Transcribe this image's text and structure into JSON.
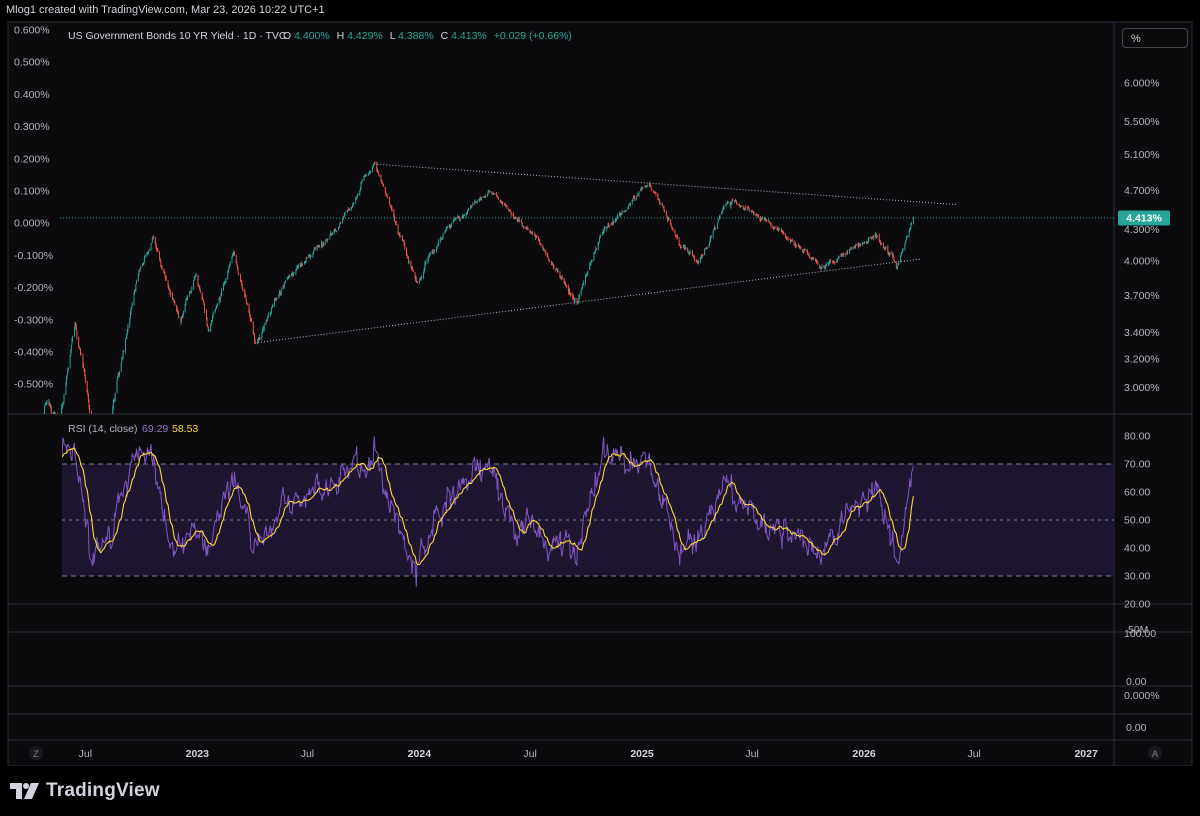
{
  "header": {
    "attribution": "Mlog1 created with TradingView.com, Mar 23, 2026 10:22 UTC+1"
  },
  "legend": {
    "symbol": "US Government Bonds 10 YR Yield · 1D · TVC",
    "o_label": "O",
    "o_value": "4.400%",
    "h_label": "H",
    "h_value": "4.429%",
    "l_label": "L",
    "l_value": "4.388%",
    "c_label": "C",
    "c_value": "4.413%",
    "change": "+0.029 (+0.66%)"
  },
  "scale_button": "%",
  "left_axis": [
    "0.600%",
    "0.500%",
    "0.400%",
    "0.300%",
    "0.200%",
    "0.100%",
    "0.000%",
    "-0.100%",
    "-0.200%",
    "-0.300%",
    "-0.400%",
    "-0.500%"
  ],
  "right_axis": [
    "6.000%",
    "5.500%",
    "5.100%",
    "4.700%",
    "4.300%",
    "4.000%",
    "3.700%",
    "3.400%",
    "3.200%",
    "3.000%"
  ],
  "last_price_label": "4.413%",
  "rsi": {
    "label": "RSI (14, close)",
    "value": "69.29",
    "ma_value": "58.53",
    "axis": [
      "80.00",
      "70.00",
      "60.00",
      "50.00",
      "40.00",
      "30.00",
      "20.00"
    ],
    "upper_band": 70,
    "middle_band": 50,
    "lower_band": 30
  },
  "lower_panes": {
    "axis_a": [
      "50M",
      "100.00"
    ],
    "axis_b": [
      "0.00",
      "0.000%"
    ],
    "axis_c": [
      "0.00"
    ]
  },
  "time_axis": [
    "Jul",
    "2023",
    "Jul",
    "2024",
    "Jul",
    "2025",
    "Jul",
    "2026",
    "Jul",
    "2027"
  ],
  "corner_left": "Z",
  "corner_right": "A",
  "footer": {
    "brand": "TradingView"
  },
  "colors": {
    "background": "#000000",
    "up": "#26a69a",
    "down": "#ef5350",
    "rsi_line": "#7e57c2",
    "rsi_ma": "#fdd835",
    "rsi_band_fill": "#1e1530",
    "price_line": "#26a69a"
  },
  "chart_data": {
    "type": "candlestick",
    "title": "US Government Bonds 10 YR Yield · 1D · TVC",
    "y_unit": "%",
    "x_range": [
      "2022-04-01",
      "2027-02-01"
    ],
    "y_range": [
      2.85,
      6.3
    ],
    "scale": "log",
    "last_close": 4.413,
    "price_path": [
      {
        "date": "2022-04-01",
        "value": 2.55
      },
      {
        "date": "2022-05-01",
        "value": 2.9
      },
      {
        "date": "2022-05-20",
        "value": 2.8
      },
      {
        "date": "2022-06-14",
        "value": 3.45
      },
      {
        "date": "2022-07-10",
        "value": 2.8
      },
      {
        "date": "2022-08-01",
        "value": 2.6
      },
      {
        "date": "2022-09-01",
        "value": 3.25
      },
      {
        "date": "2022-09-25",
        "value": 3.85
      },
      {
        "date": "2022-10-20",
        "value": 4.22
      },
      {
        "date": "2022-11-10",
        "value": 3.85
      },
      {
        "date": "2022-12-05",
        "value": 3.5
      },
      {
        "date": "2022-12-30",
        "value": 3.88
      },
      {
        "date": "2023-01-20",
        "value": 3.4
      },
      {
        "date": "2023-03-02",
        "value": 4.05
      },
      {
        "date": "2023-04-06",
        "value": 3.3
      },
      {
        "date": "2023-05-25",
        "value": 3.8
      },
      {
        "date": "2023-07-06",
        "value": 4.06
      },
      {
        "date": "2023-08-21",
        "value": 4.33
      },
      {
        "date": "2023-10-19",
        "value": 4.99
      },
      {
        "date": "2023-11-10",
        "value": 4.6
      },
      {
        "date": "2023-12-27",
        "value": 3.79
      },
      {
        "date": "2024-02-15",
        "value": 4.3
      },
      {
        "date": "2024-04-25",
        "value": 4.7
      },
      {
        "date": "2024-06-01",
        "value": 4.45
      },
      {
        "date": "2024-07-15",
        "value": 4.2
      },
      {
        "date": "2024-09-16",
        "value": 3.62
      },
      {
        "date": "2024-10-25",
        "value": 4.25
      },
      {
        "date": "2025-01-13",
        "value": 4.79
      },
      {
        "date": "2025-03-03",
        "value": 4.15
      },
      {
        "date": "2025-04-04",
        "value": 4.0
      },
      {
        "date": "2025-05-21",
        "value": 4.6
      },
      {
        "date": "2025-07-15",
        "value": 4.45
      },
      {
        "date": "2025-09-01",
        "value": 4.2
      },
      {
        "date": "2025-10-22",
        "value": 3.97
      },
      {
        "date": "2025-11-25",
        "value": 4.05
      },
      {
        "date": "2025-12-20",
        "value": 4.15
      },
      {
        "date": "2026-01-20",
        "value": 4.25
      },
      {
        "date": "2026-02-25",
        "value": 3.95
      },
      {
        "date": "2026-03-23",
        "value": 4.413
      }
    ],
    "trendlines": [
      {
        "from": {
          "date": "2023-10-19",
          "value": 4.99
        },
        "to": {
          "date": "2026-06-01",
          "value": 4.55
        }
      },
      {
        "from": {
          "date": "2023-04-06",
          "value": 3.32
        },
        "to": {
          "date": "2026-04-05",
          "value": 4.02
        }
      }
    ],
    "rsi_path": [
      {
        "date": "2022-04-01",
        "value": 60
      },
      {
        "date": "2022-05-01",
        "value": 76
      },
      {
        "date": "2022-06-14",
        "value": 75
      },
      {
        "date": "2022-07-10",
        "value": 38
      },
      {
        "date": "2022-08-01",
        "value": 40
      },
      {
        "date": "2022-09-25",
        "value": 76
      },
      {
        "date": "2022-10-20",
        "value": 72
      },
      {
        "date": "2022-11-20",
        "value": 38
      },
      {
        "date": "2022-12-30",
        "value": 48
      },
      {
        "date": "2023-01-20",
        "value": 42
      },
      {
        "date": "2023-03-02",
        "value": 66
      },
      {
        "date": "2023-04-06",
        "value": 40
      },
      {
        "date": "2023-05-25",
        "value": 55
      },
      {
        "date": "2023-07-06",
        "value": 58
      },
      {
        "date": "2023-08-21",
        "value": 65
      },
      {
        "date": "2023-10-19",
        "value": 73
      },
      {
        "date": "2023-12-27",
        "value": 31
      },
      {
        "date": "2024-02-15",
        "value": 56
      },
      {
        "date": "2024-04-25",
        "value": 70
      },
      {
        "date": "2024-06-01",
        "value": 48
      },
      {
        "date": "2024-07-15",
        "value": 45
      },
      {
        "date": "2024-09-16",
        "value": 37
      },
      {
        "date": "2024-10-25",
        "value": 73
      },
      {
        "date": "2025-01-13",
        "value": 70
      },
      {
        "date": "2025-03-03",
        "value": 40
      },
      {
        "date": "2025-04-04",
        "value": 45
      },
      {
        "date": "2025-05-21",
        "value": 62
      },
      {
        "date": "2025-07-15",
        "value": 50
      },
      {
        "date": "2025-09-01",
        "value": 46
      },
      {
        "date": "2025-10-22",
        "value": 38
      },
      {
        "date": "2025-12-20",
        "value": 57
      },
      {
        "date": "2026-01-20",
        "value": 62
      },
      {
        "date": "2026-02-25",
        "value": 33
      },
      {
        "date": "2026-03-23",
        "value": 69.29
      }
    ],
    "rsi_ma_last": 58.53
  }
}
